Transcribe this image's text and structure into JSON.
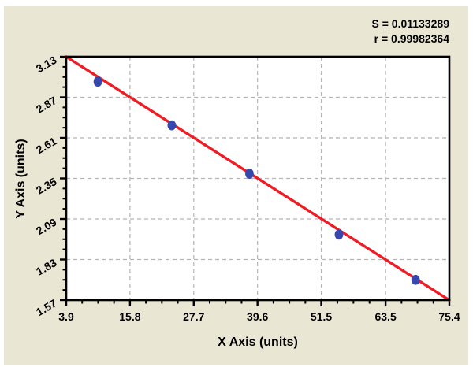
{
  "chart_data": {
    "type": "scatter",
    "title": "",
    "xlabel": "X Axis (units)",
    "ylabel": "Y Axis (units)",
    "x_ticks": [
      "3.9",
      "15.8",
      "27.7",
      "39.6",
      "51.5",
      "63.5",
      "75.4"
    ],
    "y_ticks": [
      "3.13",
      "2.87",
      "2.61",
      "2.35",
      "2.09",
      "1.83",
      "1.57"
    ],
    "xlim": [
      3.9,
      75.4
    ],
    "ylim": [
      1.57,
      3.13
    ],
    "minor_ticks_per_division": 3,
    "grid": "dashed gray lines at interior major ticks, both directions",
    "legend": "none",
    "points": [
      {
        "x": 9.8,
        "y": 2.97
      },
      {
        "x": 23.6,
        "y": 2.69
      },
      {
        "x": 38.1,
        "y": 2.38
      },
      {
        "x": 54.8,
        "y": 1.99
      },
      {
        "x": 69.1,
        "y": 1.7
      }
    ],
    "trendline": {
      "x1": 3.9,
      "y1": 3.13,
      "x2": 75.4,
      "y2": 1.57
    },
    "annotations": [
      "S = 0.01133289",
      "r = 0.99982364"
    ],
    "colors": {
      "line": "#ee1c24",
      "point": "#3647ad",
      "grid": "#b5b5b5",
      "axis": "#000000",
      "text": "#000000",
      "plot_bg": "#ffffff",
      "panel_bg": "#e9e6d4"
    }
  }
}
